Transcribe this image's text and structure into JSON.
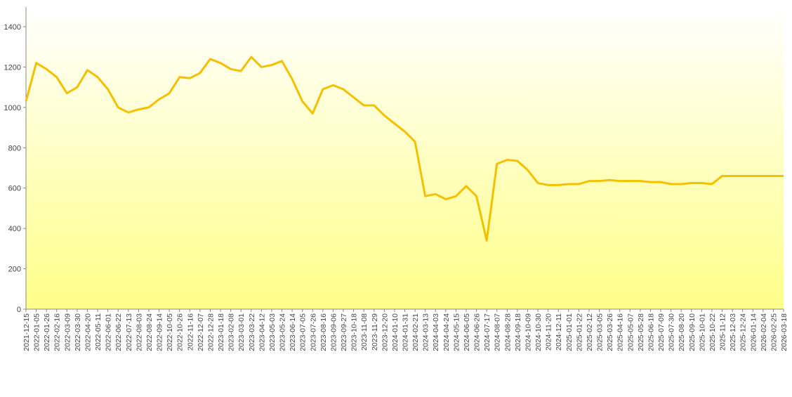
{
  "chart_data": {
    "type": "line",
    "categories": [
      "2021-12-15",
      "2022-01-05",
      "2022-01-26",
      "2022-02-16",
      "2022-03-09",
      "2022-03-30",
      "2022-04-20",
      "2022-05-11",
      "2022-06-01",
      "2022-06-22",
      "2022-07-13",
      "2022-08-03",
      "2022-08-24",
      "2022-09-14",
      "2022-10-05",
      "2022-10-26",
      "2022-11-16",
      "2022-12-07",
      "2022-12-28",
      "2023-01-18",
      "2023-02-08",
      "2023-03-01",
      "2023-03-22",
      "2023-04-12",
      "2023-05-03",
      "2023-05-24",
      "2023-06-14",
      "2023-07-05",
      "2023-07-26",
      "2023-08-16",
      "2023-09-06",
      "2023-09-27",
      "2023-10-18",
      "2023-11-08",
      "2023-11-29",
      "2023-12-20",
      "2024-01-10",
      "2024-01-31",
      "2024-02-21",
      "2024-03-13",
      "2024-04-03",
      "2024-04-24",
      "2024-05-15",
      "2024-06-05",
      "2024-06-26",
      "2024-07-17",
      "2024-08-07",
      "2024-08-28",
      "2024-09-18",
      "2024-10-09",
      "2024-10-30",
      "2024-11-20",
      "2024-12-11",
      "2025-01-01",
      "2025-01-22",
      "2025-02-12",
      "2025-03-05",
      "2025-03-26",
      "2025-04-16",
      "2025-05-07",
      "2025-05-28",
      "2025-06-18",
      "2025-07-09",
      "2025-07-30",
      "2025-08-20",
      "2025-09-10",
      "2025-10-01",
      "2025-10-22",
      "2025-11-12",
      "2025-12-03",
      "2025-12-24",
      "2026-01-14",
      "2026-02-04",
      "2026-02-25",
      "2026-03-18"
    ],
    "series": [
      {
        "color": "#f5c000",
        "values": [
          1030,
          1220,
          1190,
          1150,
          1070,
          1100,
          1185,
          1150,
          1090,
          1000,
          975,
          990,
          1000,
          1040,
          1070,
          1150,
          1145,
          1170,
          1240,
          1220,
          1190,
          1180,
          1250,
          1200,
          1210,
          1230,
          1140,
          1030,
          970,
          1090,
          1110,
          1090,
          1050,
          1010,
          1010,
          960,
          920,
          880,
          830,
          560,
          570,
          545,
          560,
          610,
          560,
          340,
          720,
          740,
          735,
          690,
          625,
          615,
          615,
          620,
          620,
          635,
          635,
          640,
          635,
          635,
          635,
          630,
          630,
          620,
          620,
          625,
          625,
          620,
          660,
          660,
          660,
          660,
          660,
          660,
          660
        ]
      }
    ],
    "ylim": [
      0,
      1400
    ],
    "yticks": [
      0,
      200,
      400,
      600,
      800,
      1000,
      1200,
      1400
    ]
  }
}
